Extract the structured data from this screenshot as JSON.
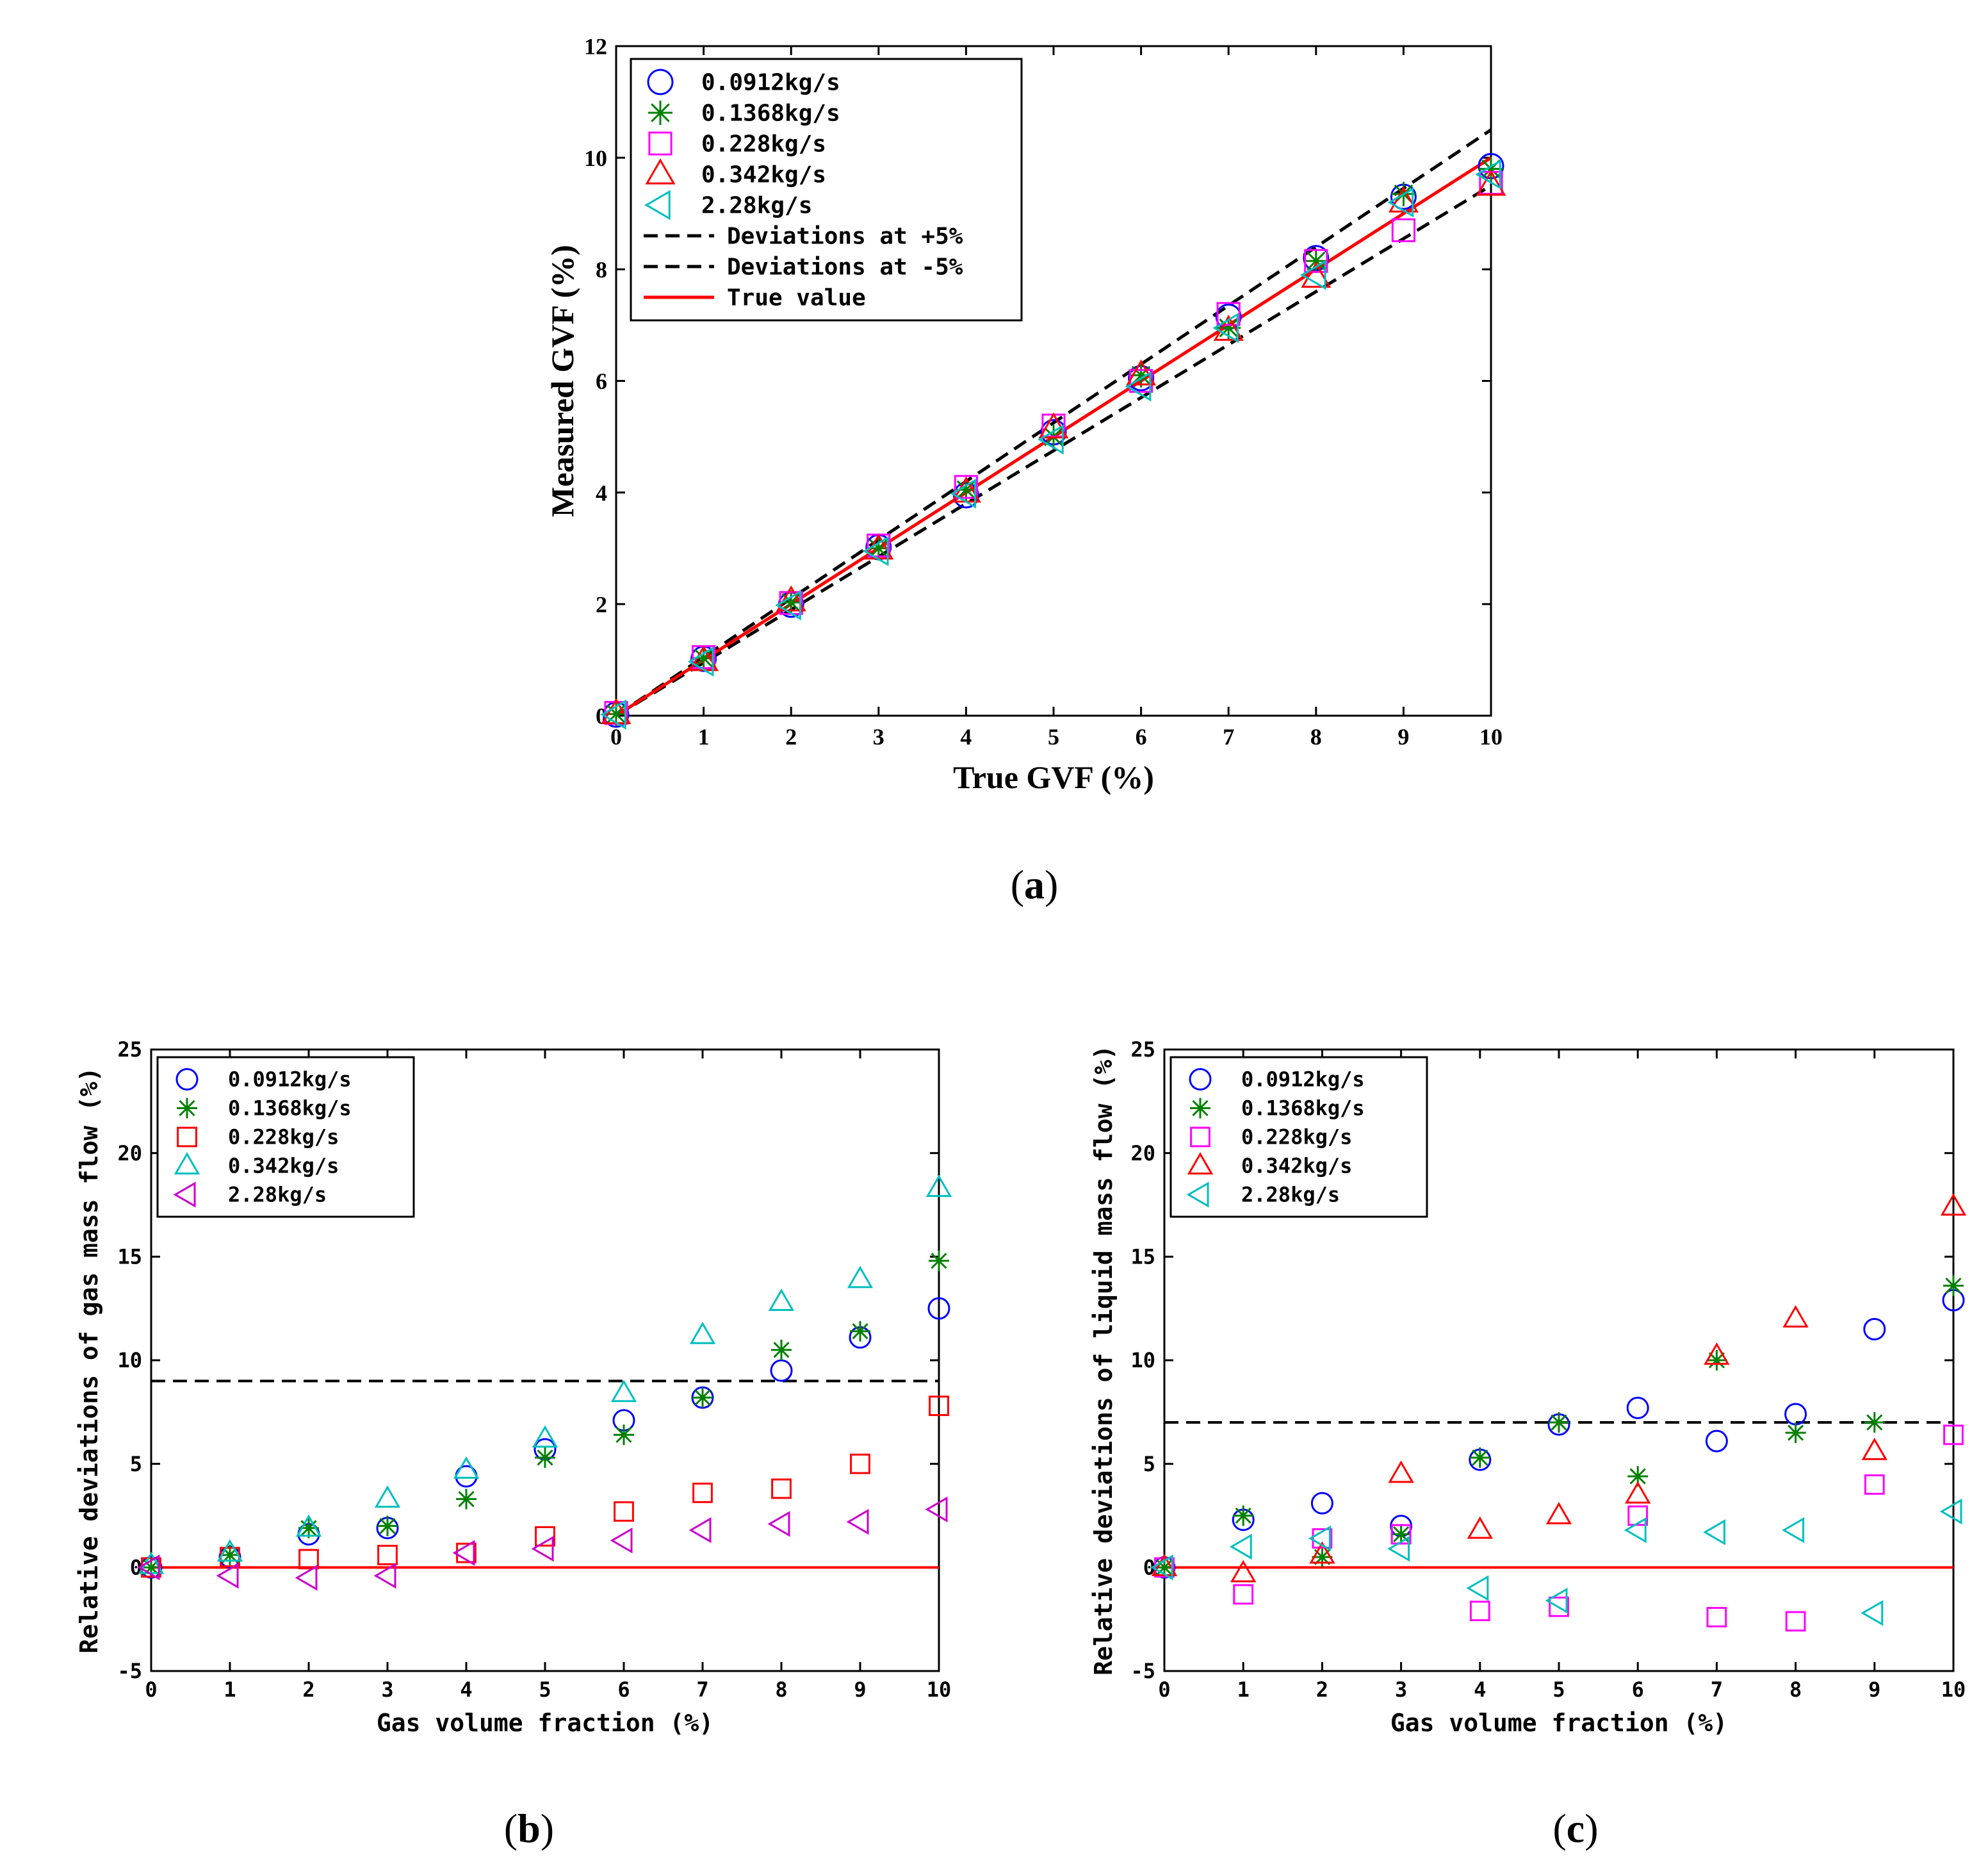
{
  "chart_data": [
    {
      "id": "a",
      "type": "scatter",
      "panel_label_open": "(",
      "panel_label": "a",
      "panel_label_close": ")",
      "xlabel": "True GVF (%)",
      "ylabel": "Measured GVF (%)",
      "xlim": [
        0,
        10
      ],
      "ylim": [
        0,
        12
      ],
      "xticks": [
        0,
        1,
        2,
        3,
        4,
        5,
        6,
        7,
        8,
        9,
        10
      ],
      "yticks": [
        0,
        2,
        4,
        6,
        8,
        10,
        12
      ],
      "x": [
        0,
        1,
        2,
        3,
        4,
        5,
        6,
        7,
        8,
        9,
        10
      ],
      "series": [
        {
          "name": "0.0912kg/s",
          "marker": "circle",
          "color": "#0000ff",
          "values": [
            0.02,
            1.02,
            1.99,
            3.02,
            3.95,
            5.08,
            6.05,
            7.15,
            8.2,
            9.3,
            9.85
          ]
        },
        {
          "name": "0.1368kg/s",
          "marker": "star",
          "color": "#008000",
          "values": [
            0.03,
            1.03,
            2.03,
            3.0,
            4.05,
            5.0,
            6.1,
            6.95,
            8.15,
            9.35,
            9.8
          ]
        },
        {
          "name": "0.228kg/s",
          "marker": "square",
          "color": "#ff00ff",
          "values": [
            0.05,
            1.05,
            2.02,
            3.05,
            4.1,
            5.2,
            6.0,
            7.2,
            8.15,
            8.7,
            9.55
          ]
        },
        {
          "name": "0.342kg/s",
          "marker": "triangle-up",
          "color": "#ff0000",
          "values": [
            0.03,
            0.98,
            2.05,
            2.98,
            4.0,
            5.15,
            6.1,
            6.9,
            7.85,
            9.2,
            9.5
          ]
        },
        {
          "name": "2.28kg/s",
          "marker": "triangle-left",
          "color": "#00bfbf",
          "values": [
            0.02,
            0.97,
            1.98,
            2.95,
            3.98,
            4.95,
            5.9,
            6.95,
            7.9,
            9.2,
            9.7
          ]
        }
      ],
      "lines": [
        {
          "name": "Deviations at +5%",
          "style": "dashed",
          "color": "#000000",
          "slope": 1.05
        },
        {
          "name": "Deviations at -5%",
          "style": "dashed",
          "color": "#000000",
          "slope": 0.95
        },
        {
          "name": "True value",
          "style": "solid",
          "color": "#ff0000",
          "slope": 1.0
        }
      ],
      "legend_position": "top-left"
    },
    {
      "id": "b",
      "type": "scatter",
      "panel_label_open": "(",
      "panel_label": "b",
      "panel_label_close": ")",
      "xlabel": "Gas volume fraction (%)",
      "ylabel": "Relative deviations of gas mass flow (%)",
      "xlim": [
        0,
        10
      ],
      "ylim": [
        -5,
        25
      ],
      "xticks": [
        0,
        1,
        2,
        3,
        4,
        5,
        6,
        7,
        8,
        9,
        10
      ],
      "yticks": [
        -5,
        0,
        5,
        10,
        15,
        20,
        25
      ],
      "x": [
        0,
        1,
        2,
        3,
        4,
        5,
        6,
        7,
        8,
        9,
        10
      ],
      "series": [
        {
          "name": "0.0912kg/s",
          "marker": "circle",
          "color": "#0000ff",
          "values": [
            0.0,
            0.5,
            1.6,
            1.9,
            4.4,
            5.7,
            7.1,
            8.2,
            9.5,
            11.1,
            12.5
          ]
        },
        {
          "name": "0.1368kg/s",
          "marker": "star",
          "color": "#008000",
          "values": [
            0.0,
            0.6,
            1.9,
            2.0,
            3.3,
            5.3,
            6.4,
            8.2,
            10.5,
            11.4,
            14.8
          ]
        },
        {
          "name": "0.228kg/s",
          "marker": "square",
          "color": "#ff0000",
          "values": [
            0.0,
            0.5,
            0.4,
            0.6,
            0.7,
            1.5,
            2.7,
            3.6,
            3.8,
            5.0,
            7.8
          ]
        },
        {
          "name": "0.342kg/s",
          "marker": "triangle-up",
          "color": "#00bfbf",
          "values": [
            0.1,
            0.7,
            1.9,
            3.3,
            4.7,
            6.2,
            8.4,
            11.2,
            12.8,
            13.9,
            18.3
          ]
        },
        {
          "name": "2.28kg/s",
          "marker": "triangle-left",
          "color": "#cc00cc",
          "values": [
            0.0,
            -0.4,
            -0.5,
            -0.4,
            0.7,
            0.9,
            1.3,
            1.8,
            2.1,
            2.2,
            2.8
          ]
        }
      ],
      "lines": [
        {
          "style": "dashed",
          "color": "#000000",
          "y": 9.0
        },
        {
          "style": "solid",
          "color": "#ff0000",
          "y": 0.0
        }
      ],
      "legend_position": "top-left"
    },
    {
      "id": "c",
      "type": "scatter",
      "panel_label_open": "(",
      "panel_label": "c",
      "panel_label_close": ")",
      "xlabel": "Gas volume fraction (%)",
      "ylabel": "Relative deviations of liquid mass flow (%)",
      "xlim": [
        0,
        10
      ],
      "ylim": [
        -5,
        25
      ],
      "xticks": [
        0,
        1,
        2,
        3,
        4,
        5,
        6,
        7,
        8,
        9,
        10
      ],
      "yticks": [
        -5,
        0,
        5,
        10,
        15,
        20,
        25
      ],
      "x": [
        0,
        1,
        2,
        3,
        4,
        5,
        6,
        7,
        8,
        9,
        10
      ],
      "series": [
        {
          "name": "0.0912kg/s",
          "marker": "circle",
          "color": "#0000ff",
          "values": [
            0.0,
            2.3,
            3.1,
            2.0,
            5.2,
            6.9,
            7.7,
            6.1,
            7.4,
            11.5,
            12.9
          ]
        },
        {
          "name": "0.1368kg/s",
          "marker": "star",
          "color": "#008000",
          "values": [
            0.0,
            2.5,
            0.5,
            1.6,
            5.3,
            7.0,
            4.4,
            10.0,
            6.5,
            7.0,
            13.6
          ]
        },
        {
          "name": "0.228kg/s",
          "marker": "square",
          "color": "#ff00ff",
          "values": [
            0.0,
            -1.3,
            1.4,
            1.6,
            -2.1,
            -1.9,
            2.5,
            -2.4,
            -2.6,
            4.0,
            6.4
          ]
        },
        {
          "name": "0.342kg/s",
          "marker": "triangle-up",
          "color": "#ff0000",
          "values": [
            0.0,
            -0.3,
            0.6,
            4.5,
            1.8,
            2.5,
            3.5,
            10.2,
            12.0,
            5.6,
            17.4
          ]
        },
        {
          "name": "2.28kg/s",
          "marker": "triangle-left",
          "color": "#00bfbf",
          "values": [
            0.0,
            1.0,
            1.4,
            0.9,
            -1.0,
            -1.6,
            1.8,
            1.7,
            1.8,
            -2.2,
            2.7
          ]
        }
      ],
      "lines": [
        {
          "style": "dashed",
          "color": "#000000",
          "y": 7.0
        },
        {
          "style": "solid",
          "color": "#ff0000",
          "y": 0.0
        }
      ],
      "legend_position": "top-left"
    }
  ]
}
